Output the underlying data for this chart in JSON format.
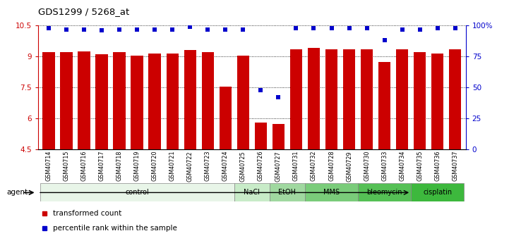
{
  "title": "GDS1299 / 5268_at",
  "samples": [
    "GSM40714",
    "GSM40715",
    "GSM40716",
    "GSM40717",
    "GSM40718",
    "GSM40719",
    "GSM40720",
    "GSM40721",
    "GSM40722",
    "GSM40723",
    "GSM40724",
    "GSM40725",
    "GSM40726",
    "GSM40727",
    "GSM40731",
    "GSM40732",
    "GSM40728",
    "GSM40729",
    "GSM40730",
    "GSM40733",
    "GSM40734",
    "GSM40735",
    "GSM40736",
    "GSM40737"
  ],
  "bar_values": [
    9.2,
    9.2,
    9.25,
    9.1,
    9.2,
    9.05,
    9.15,
    9.15,
    9.3,
    9.2,
    7.55,
    9.05,
    5.8,
    5.75,
    9.35,
    9.4,
    9.35,
    9.35,
    9.35,
    8.75,
    9.35,
    9.2,
    9.15,
    9.35
  ],
  "percentile_values": [
    98,
    97,
    97,
    96,
    97,
    97,
    97,
    97,
    99,
    97,
    97,
    97,
    48,
    42,
    98,
    98,
    98,
    98,
    98,
    88,
    97,
    97,
    98,
    98
  ],
  "groups": [
    {
      "label": "control",
      "start": 0,
      "end": 11,
      "color": "#e8f5e8"
    },
    {
      "label": "NaCl",
      "start": 11,
      "end": 13,
      "color": "#c8ebc8"
    },
    {
      "label": "EtOH",
      "start": 13,
      "end": 15,
      "color": "#a0d8a0"
    },
    {
      "label": "MMS",
      "start": 15,
      "end": 18,
      "color": "#7acc7a"
    },
    {
      "label": "bleomycin",
      "start": 18,
      "end": 21,
      "color": "#55c055"
    },
    {
      "label": "cisplatin",
      "start": 21,
      "end": 24,
      "color": "#3db83d"
    }
  ],
  "bar_color": "#cc0000",
  "dot_color": "#0000cc",
  "ylim_left": [
    4.5,
    10.5
  ],
  "ylim_right": [
    0,
    100
  ],
  "yticks_left": [
    4.5,
    6.0,
    7.5,
    9.0,
    10.5
  ],
  "ytick_labels_left": [
    "4.5",
    "6",
    "7.5",
    "9",
    "10.5"
  ],
  "yticks_right": [
    0,
    25,
    50,
    75,
    100
  ],
  "ytick_labels_right": [
    "0",
    "25",
    "50",
    "75",
    "100%"
  ],
  "bar_width": 0.7,
  "legend_items": [
    {
      "label": "transformed count",
      "color": "#cc0000"
    },
    {
      "label": "percentile rank within the sample",
      "color": "#0000cc"
    }
  ]
}
